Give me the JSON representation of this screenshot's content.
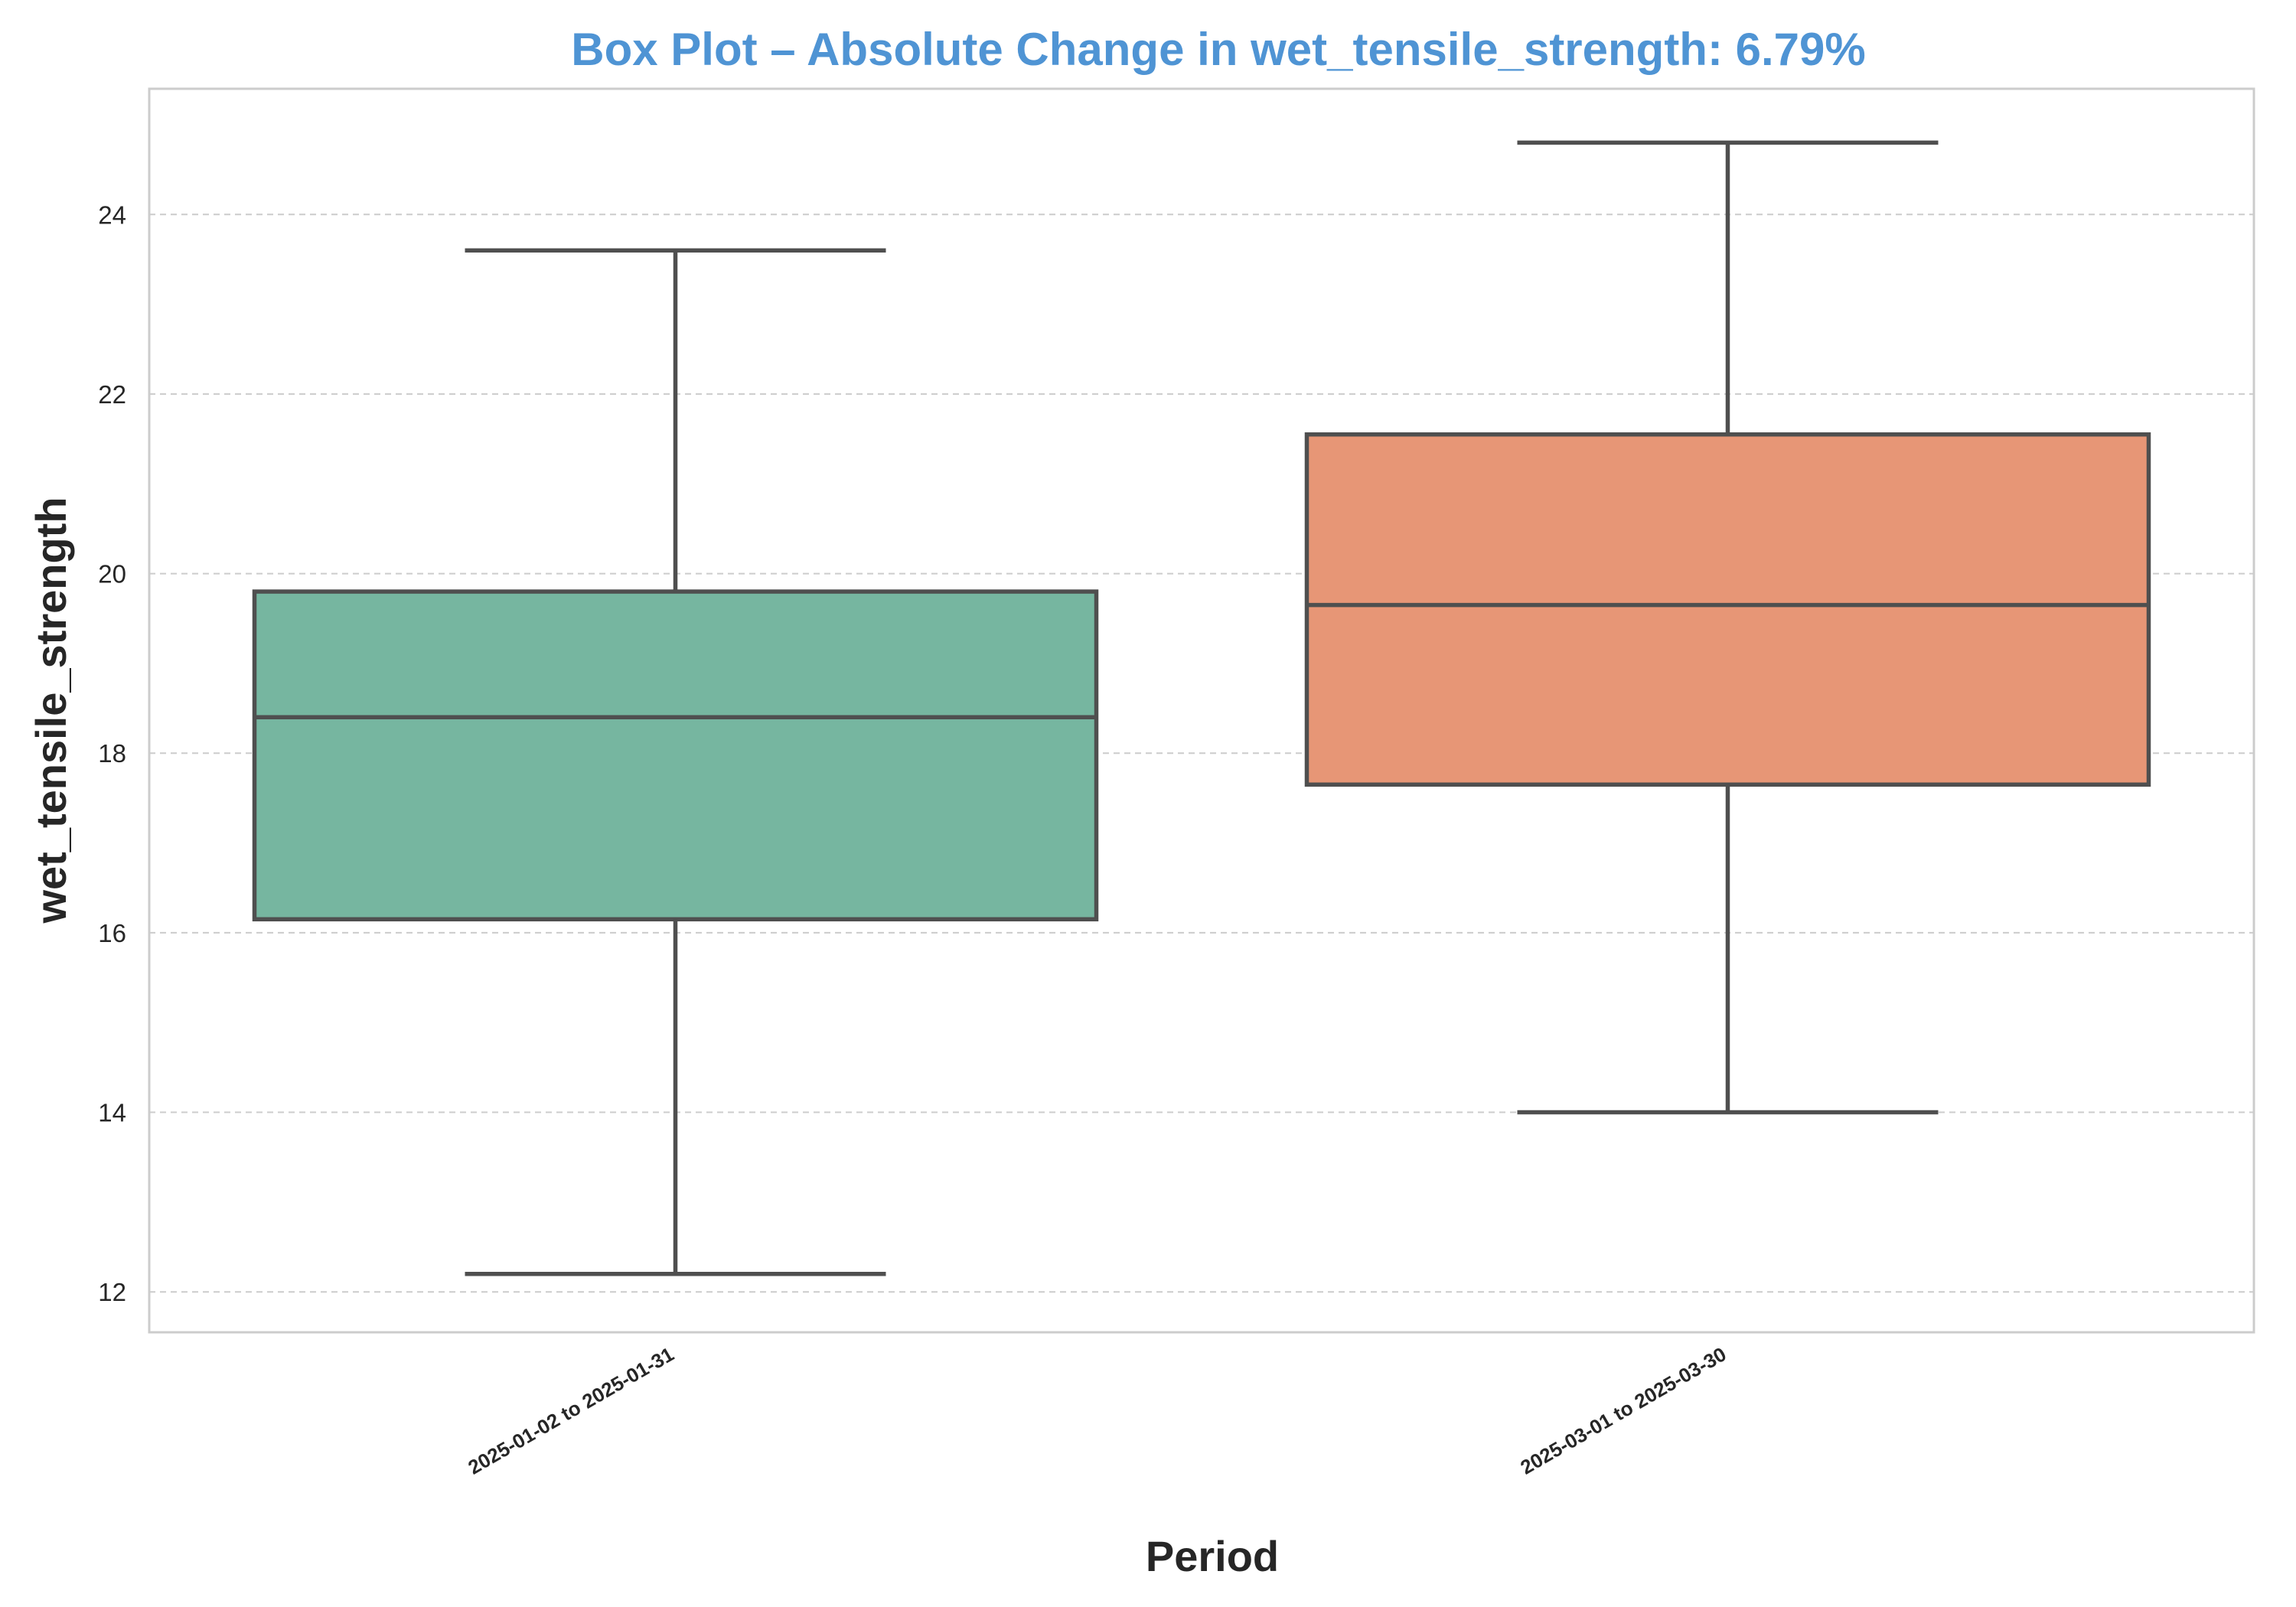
{
  "chart_data": {
    "type": "box",
    "title": "Box Plot – Absolute Change in wet_tensile_strength: 6.79%",
    "xlabel": "Period",
    "ylabel": "wet_tensile_strength",
    "ylim": [
      11.55,
      25.4
    ],
    "yticks": [
      12,
      14,
      16,
      18,
      20,
      22,
      24
    ],
    "grid": true,
    "categories": [
      "2025-01-02 to 2025-01-31",
      "2025-03-01 to 2025-03-30"
    ],
    "boxes": [
      {
        "category": "2025-01-02 to 2025-01-31",
        "whisker_low": 12.2,
        "q1": 16.15,
        "median": 18.4,
        "q3": 19.8,
        "whisker_high": 23.6,
        "color": "#76b6a0"
      },
      {
        "category": "2025-03-01 to 2025-03-30",
        "whisker_low": 14.0,
        "q1": 17.65,
        "median": 19.65,
        "q3": 21.55,
        "whisker_high": 24.8,
        "color": "#e79676"
      }
    ]
  },
  "colors": {
    "title": "#4f94d4",
    "box_outline": "#4f4f4f",
    "grid": "#cccccc",
    "axes_frame": "#cccccc",
    "text": "#262626"
  }
}
